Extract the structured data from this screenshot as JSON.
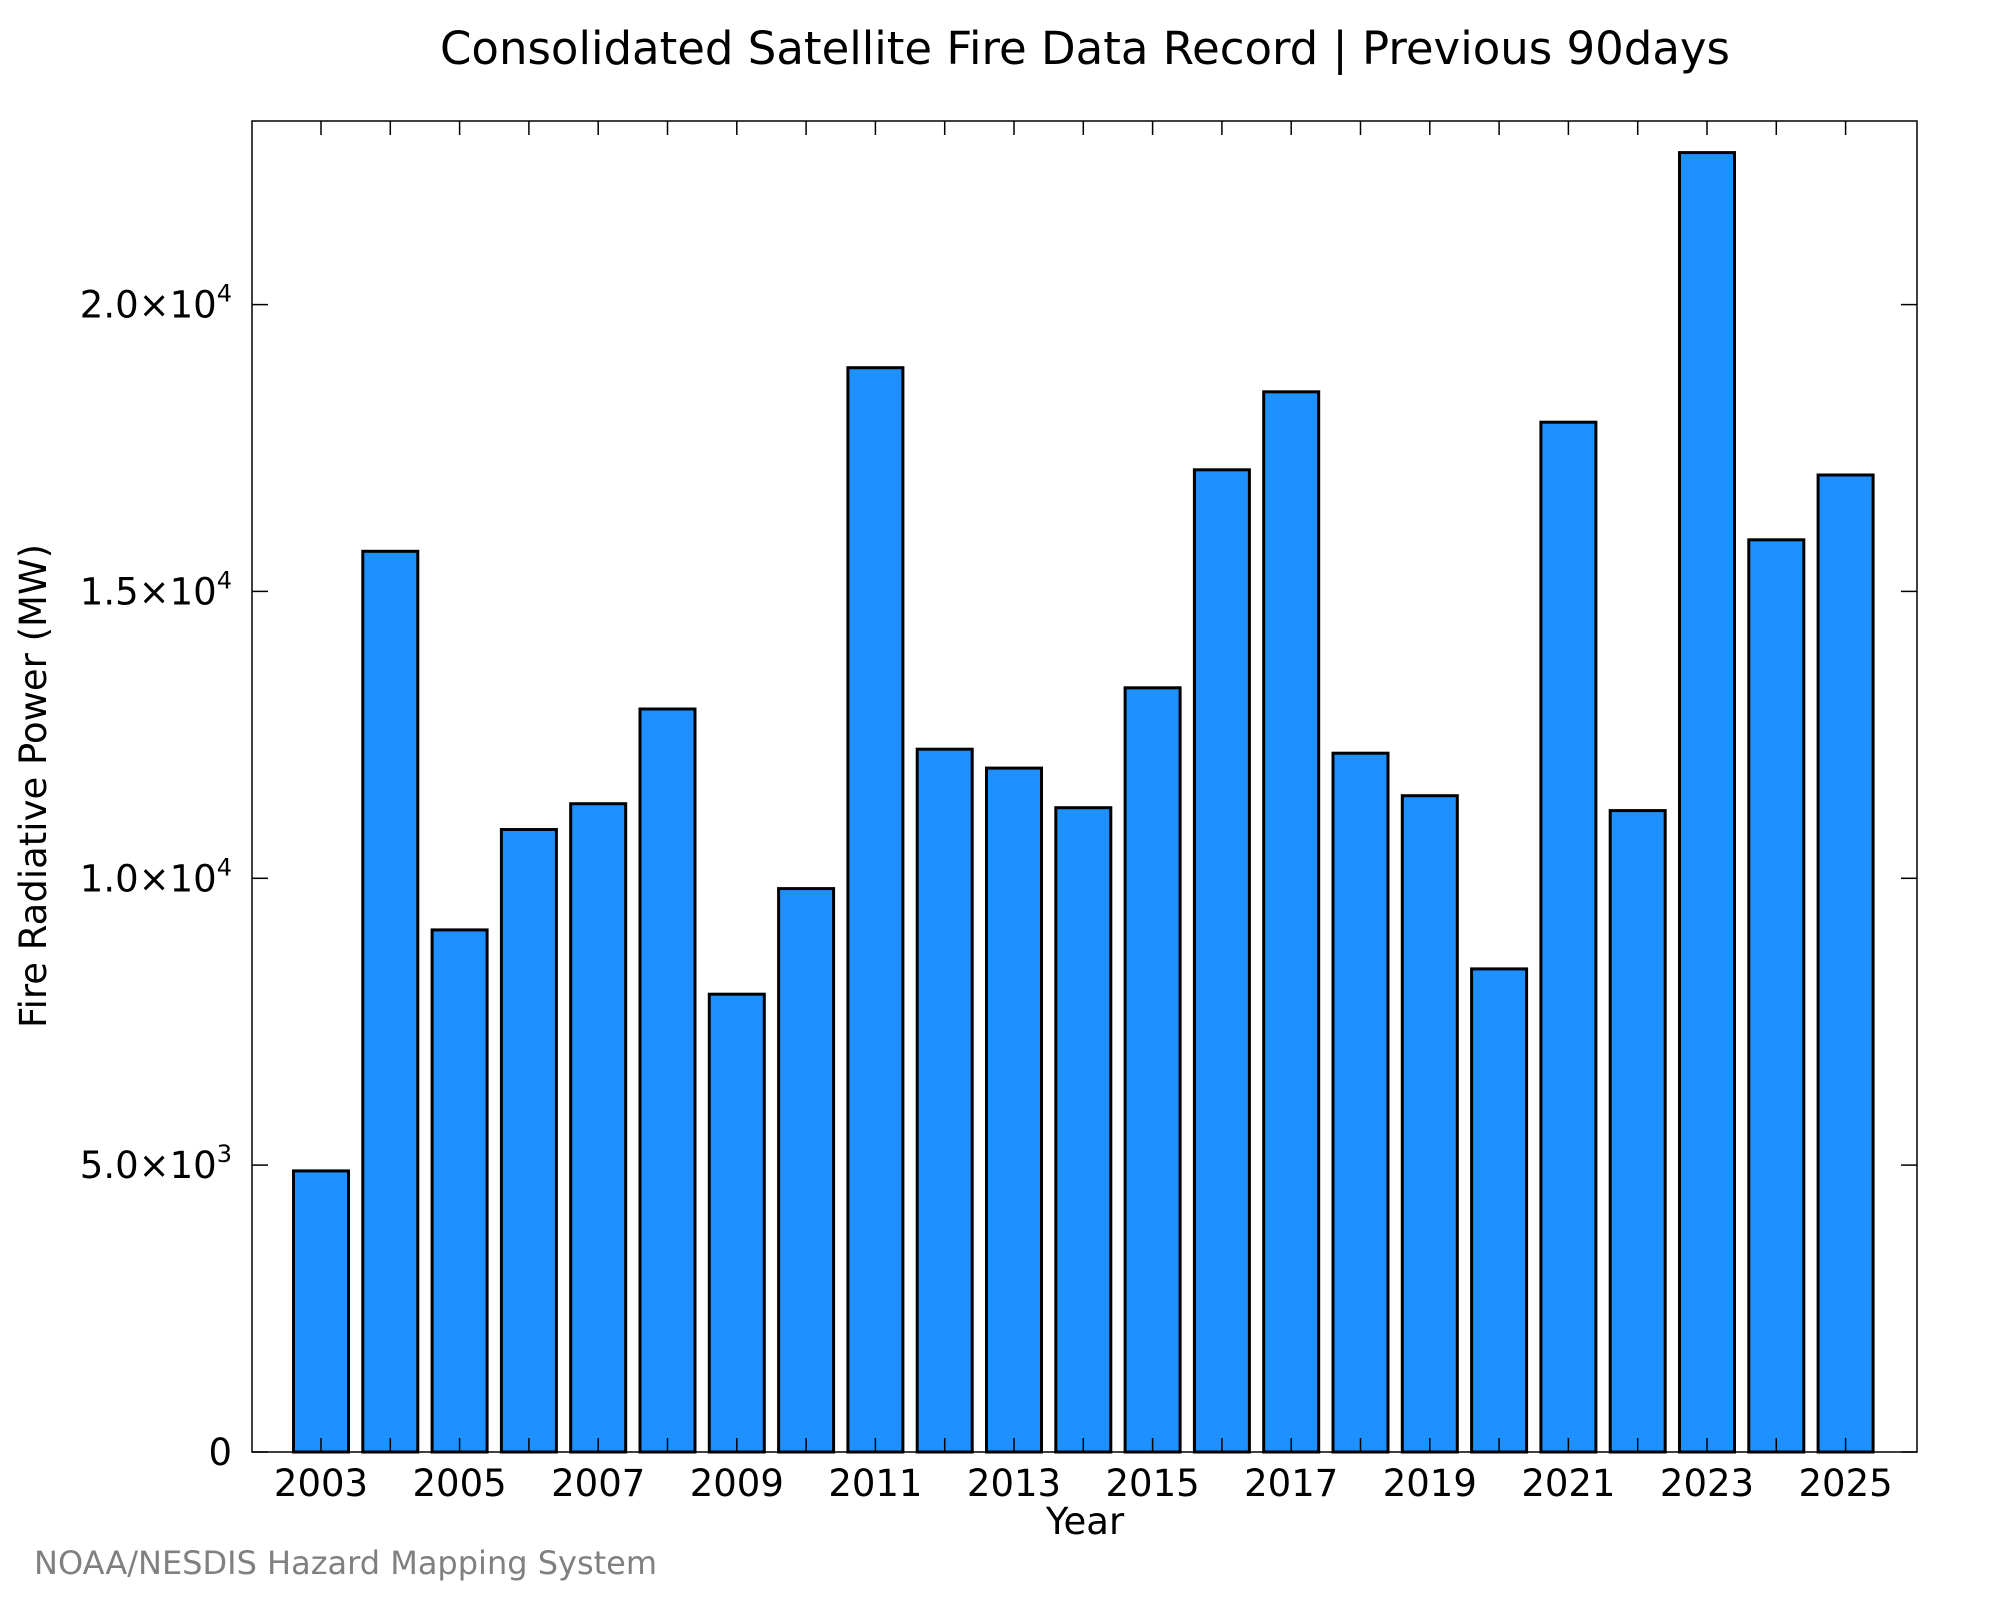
{
  "chart_data": {
    "type": "bar",
    "title": "Consolidated Satellite Fire Data Record | Previous 90days",
    "xlabel": "Year",
    "ylabel": "Fire Radiative Power (MW)",
    "categories": [
      "2003",
      "2004",
      "2005",
      "2006",
      "2007",
      "2008",
      "2009",
      "2010",
      "2011",
      "2012",
      "2013",
      "2014",
      "2015",
      "2016",
      "2017",
      "2018",
      "2019",
      "2020",
      "2021",
      "2022",
      "2023",
      "2024",
      "2025"
    ],
    "x_tick_labels": [
      "2003",
      "2005",
      "2007",
      "2009",
      "2011",
      "2013",
      "2015",
      "2017",
      "2019",
      "2021",
      "2023",
      "2025"
    ],
    "values": [
      4900,
      15700,
      9100,
      10850,
      11300,
      12950,
      7980,
      9820,
      18900,
      12250,
      11920,
      11230,
      13320,
      17120,
      18480,
      12180,
      11440,
      8420,
      17950,
      11180,
      22650,
      15900,
      17030
    ],
    "ylim": [
      0,
      23200
    ],
    "y_ticks": [
      {
        "value": 0,
        "mantissa": "0",
        "exponent": ""
      },
      {
        "value": 5000,
        "mantissa": "5.0×10",
        "exponent": "3"
      },
      {
        "value": 10000,
        "mantissa": "1.0×10",
        "exponent": "4"
      },
      {
        "value": 15000,
        "mantissa": "1.5×10",
        "exponent": "4"
      },
      {
        "value": 20000,
        "mantissa": "2.0×10",
        "exponent": "4"
      }
    ],
    "bar_color": "#1e90ff",
    "bar_edge_color": "#000000",
    "grid": false,
    "legend": "none"
  },
  "credit": {
    "text": "NOAA/NESDIS Hazard Mapping System",
    "color": "#808080"
  }
}
